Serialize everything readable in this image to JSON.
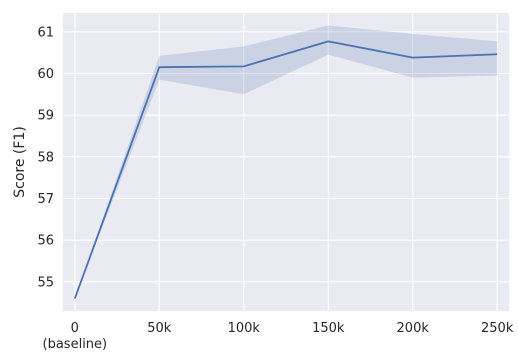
{
  "chart_data": {
    "type": "line",
    "xlabel": "",
    "ylabel": "Score (F1)",
    "x": [
      0,
      50,
      100,
      150,
      200,
      250
    ],
    "x_tick_labels": [
      "0\n(baseline)",
      "50k",
      "100k",
      "150k",
      "200k",
      "250k"
    ],
    "y_tick_labels": [
      "55",
      "56",
      "57",
      "58",
      "59",
      "60",
      "61"
    ],
    "y_ticks": [
      55,
      56,
      57,
      58,
      59,
      60,
      61
    ],
    "xlim": [
      -7,
      257
    ],
    "ylim": [
      54.3,
      61.45
    ],
    "grid": true,
    "series": [
      {
        "values": [
          54.6,
          60.15,
          60.17,
          60.77,
          60.38,
          60.46
        ],
        "band_lower": [
          54.6,
          59.85,
          59.5,
          60.45,
          59.9,
          59.95
        ],
        "band_upper": [
          54.6,
          60.42,
          60.65,
          61.15,
          60.95,
          60.77
        ]
      }
    ],
    "colors": {
      "plot_background": "#eaeaf2",
      "grid": "#ffffff",
      "line": "#4c72b0",
      "band": "#4c72b0"
    }
  }
}
